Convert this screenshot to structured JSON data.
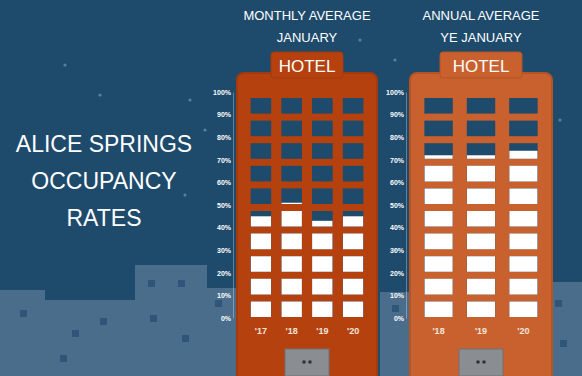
{
  "heading": [
    "ALICE SPRINGS",
    "OCCUPANCY",
    "RATES"
  ],
  "chart_data": [
    {
      "type": "bar",
      "title": [
        "MONTHLY AVERAGE",
        "JANUARY"
      ],
      "annotations": [
        "HOTEL"
      ],
      "categories": [
        "'17",
        "'18",
        "'19",
        "'20"
      ],
      "values": [
        45,
        51,
        43,
        45
      ],
      "color": "#ffffff",
      "ylim": [
        0,
        100
      ],
      "yticks": [
        {
          "value": 0,
          "label": "0%"
        },
        {
          "value": 10,
          "label": "10%"
        },
        {
          "value": 20,
          "label": "20%"
        },
        {
          "value": 30,
          "label": "30%"
        },
        {
          "value": 40,
          "label": "40%"
        },
        {
          "value": 50,
          "label": "50%"
        },
        {
          "value": 60,
          "label": "60%"
        },
        {
          "value": 70,
          "label": "70%"
        },
        {
          "value": 80,
          "label": "80%"
        },
        {
          "value": 90,
          "label": "90%"
        },
        {
          "value": 100,
          "label": "100%"
        }
      ],
      "grid": false
    },
    {
      "type": "bar",
      "title": [
        "ANNUAL AVERAGE",
        "YE JANUARY"
      ],
      "annotations": [
        "HOTEL"
      ],
      "categories": [
        "'18",
        "'19",
        "'20"
      ],
      "values": [
        72,
        72,
        74
      ],
      "color": "#ffffff",
      "ylim": [
        0,
        100
      ],
      "yticks": [
        {
          "value": 0,
          "label": "0%"
        },
        {
          "value": 10,
          "label": "10%"
        },
        {
          "value": 20,
          "label": "20%"
        },
        {
          "value": 30,
          "label": "30%"
        },
        {
          "value": 40,
          "label": "40%"
        },
        {
          "value": 50,
          "label": "50%"
        },
        {
          "value": 60,
          "label": "60%"
        },
        {
          "value": 70,
          "label": "70%"
        },
        {
          "value": 80,
          "label": "80%"
        },
        {
          "value": 90,
          "label": "90%"
        },
        {
          "value": 100,
          "label": "100%"
        }
      ],
      "grid": false
    }
  ]
}
